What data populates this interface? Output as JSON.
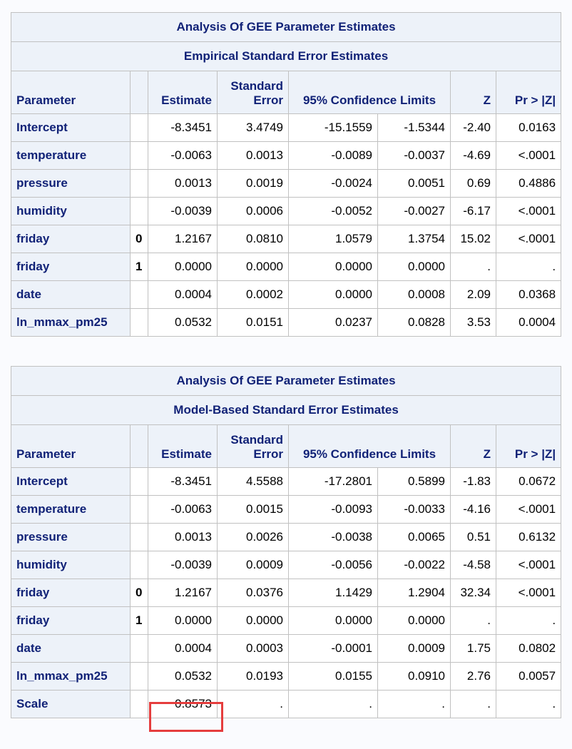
{
  "tables": [
    {
      "title": "Analysis Of GEE Parameter Estimates",
      "subtitle": "Empirical Standard Error Estimates",
      "headers": {
        "parameter": "Parameter",
        "level": "",
        "estimate": "Estimate",
        "std_line1": "Standard",
        "std_line2": "Error",
        "ci": "95% Confidence Limits",
        "z": "Z",
        "p": "Pr > |Z|"
      },
      "rows": [
        {
          "parameter": "Intercept",
          "level": "",
          "estimate": "-8.3451",
          "se": "3.4749",
          "lcl": "-15.1559",
          "ucl": "-1.5344",
          "z": "-2.40",
          "p": "0.0163"
        },
        {
          "parameter": "temperature",
          "level": "",
          "estimate": "-0.0063",
          "se": "0.0013",
          "lcl": "-0.0089",
          "ucl": "-0.0037",
          "z": "-4.69",
          "p": "<.0001"
        },
        {
          "parameter": "pressure",
          "level": "",
          "estimate": "0.0013",
          "se": "0.0019",
          "lcl": "-0.0024",
          "ucl": "0.0051",
          "z": "0.69",
          "p": "0.4886"
        },
        {
          "parameter": "humidity",
          "level": "",
          "estimate": "-0.0039",
          "se": "0.0006",
          "lcl": "-0.0052",
          "ucl": "-0.0027",
          "z": "-6.17",
          "p": "<.0001"
        },
        {
          "parameter": "friday",
          "level": "0",
          "estimate": "1.2167",
          "se": "0.0810",
          "lcl": "1.0579",
          "ucl": "1.3754",
          "z": "15.02",
          "p": "<.0001"
        },
        {
          "parameter": "friday",
          "level": "1",
          "estimate": "0.0000",
          "se": "0.0000",
          "lcl": "0.0000",
          "ucl": "0.0000",
          "z": ".",
          "p": "."
        },
        {
          "parameter": "date",
          "level": "",
          "estimate": "0.0004",
          "se": "0.0002",
          "lcl": "0.0000",
          "ucl": "0.0008",
          "z": "2.09",
          "p": "0.0368"
        },
        {
          "parameter": "ln_mmax_pm25",
          "level": "",
          "estimate": "0.0532",
          "se": "0.0151",
          "lcl": "0.0237",
          "ucl": "0.0828",
          "z": "3.53",
          "p": "0.0004"
        }
      ]
    },
    {
      "title": "Analysis Of GEE Parameter Estimates",
      "subtitle": "Model-Based Standard Error Estimates",
      "headers": {
        "parameter": "Parameter",
        "level": "",
        "estimate": "Estimate",
        "std_line1": "Standard",
        "std_line2": "Error",
        "ci": "95% Confidence Limits",
        "z": "Z",
        "p": "Pr > |Z|"
      },
      "rows": [
        {
          "parameter": "Intercept",
          "level": "",
          "estimate": "-8.3451",
          "se": "4.5588",
          "lcl": "-17.2801",
          "ucl": "0.5899",
          "z": "-1.83",
          "p": "0.0672"
        },
        {
          "parameter": "temperature",
          "level": "",
          "estimate": "-0.0063",
          "se": "0.0015",
          "lcl": "-0.0093",
          "ucl": "-0.0033",
          "z": "-4.16",
          "p": "<.0001"
        },
        {
          "parameter": "pressure",
          "level": "",
          "estimate": "0.0013",
          "se": "0.0026",
          "lcl": "-0.0038",
          "ucl": "0.0065",
          "z": "0.51",
          "p": "0.6132"
        },
        {
          "parameter": "humidity",
          "level": "",
          "estimate": "-0.0039",
          "se": "0.0009",
          "lcl": "-0.0056",
          "ucl": "-0.0022",
          "z": "-4.58",
          "p": "<.0001"
        },
        {
          "parameter": "friday",
          "level": "0",
          "estimate": "1.2167",
          "se": "0.0376",
          "lcl": "1.1429",
          "ucl": "1.2904",
          "z": "32.34",
          "p": "<.0001"
        },
        {
          "parameter": "friday",
          "level": "1",
          "estimate": "0.0000",
          "se": "0.0000",
          "lcl": "0.0000",
          "ucl": "0.0000",
          "z": ".",
          "p": "."
        },
        {
          "parameter": "date",
          "level": "",
          "estimate": "0.0004",
          "se": "0.0003",
          "lcl": "-0.0001",
          "ucl": "0.0009",
          "z": "1.75",
          "p": "0.0802"
        },
        {
          "parameter": "ln_mmax_pm25",
          "level": "",
          "estimate": "0.0532",
          "se": "0.0193",
          "lcl": "0.0155",
          "ucl": "0.0910",
          "z": "2.76",
          "p": "0.0057"
        },
        {
          "parameter": "Scale",
          "level": "",
          "estimate": "0.8573",
          "se": ".",
          "lcl": ".",
          "ucl": ".",
          "z": ".",
          "p": "."
        }
      ]
    }
  ],
  "colors": {
    "header_bg": "#edf2f9",
    "header_text": "#112277",
    "highlight_border": "#e53d3d"
  }
}
